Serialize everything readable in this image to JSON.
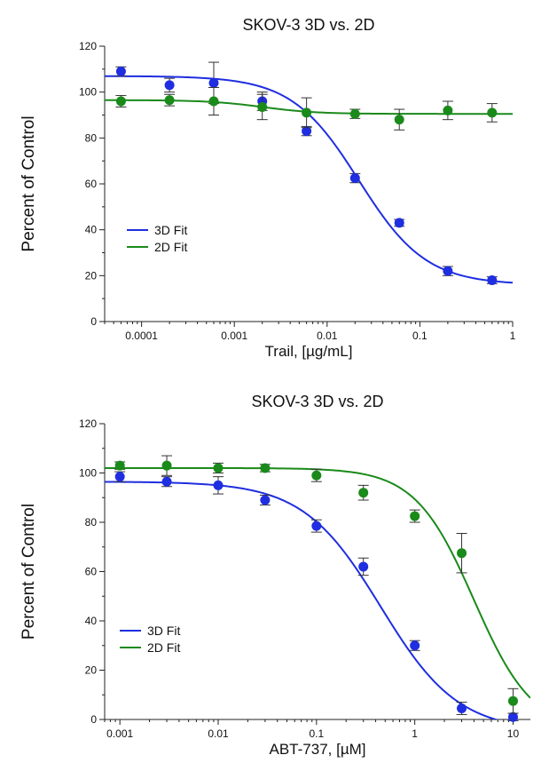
{
  "chart_data": [
    {
      "type": "scatter",
      "title": "SKOV-3  3D  vs.  2D",
      "xlabel": "Trail,  [µg/mL]",
      "ylabel": "Percent of Control",
      "xscale": "log",
      "xlim": [
        4e-05,
        1
      ],
      "ylim": [
        0,
        120
      ],
      "xticks": [
        {
          "value": 0.0001,
          "label": "0.0001"
        },
        {
          "value": 0.001,
          "label": "0.001"
        },
        {
          "value": 0.01,
          "label": "0.01"
        },
        {
          "value": 0.1,
          "label": "0.1"
        },
        {
          "value": 1,
          "label": "1"
        }
      ],
      "yticks": [
        0,
        20,
        40,
        60,
        80,
        100,
        120
      ],
      "legend_position": "lower-left",
      "grid": false,
      "series": [
        {
          "name": "3D Fit",
          "color": "#1f2ee0",
          "x": [
            6e-05,
            0.0002,
            0.0006,
            0.002,
            0.006,
            0.02,
            0.06,
            0.2,
            0.6
          ],
          "y": [
            109,
            103,
            104,
            96,
            83,
            62.5,
            43,
            22,
            18
          ],
          "err": [
            2,
            3,
            9,
            4,
            2,
            2,
            1.5,
            2,
            1.5
          ],
          "fit": {
            "bottom": 16,
            "top": 107,
            "ec50": 0.022,
            "hill": 1.2
          }
        },
        {
          "name": "2D Fit",
          "color": "#1a8a1a",
          "x": [
            6e-05,
            0.0002,
            0.0006,
            0.002,
            0.006,
            0.02,
            0.06,
            0.2,
            0.6
          ],
          "y": [
            96,
            96.5,
            96,
            93.5,
            91,
            90.5,
            88,
            92,
            91
          ],
          "err": [
            2.5,
            2.5,
            6,
            5.5,
            6.5,
            2,
            4.5,
            4,
            4
          ],
          "fit": {
            "bottom": 90.5,
            "top": 96.5,
            "ec50": 0.002,
            "hill": 1.5
          }
        }
      ]
    },
    {
      "type": "scatter",
      "title": "SKOV-3  3D  vs.  2D",
      "xlabel": "ABT-737,  [µM]",
      "ylabel": "Percent of Control",
      "xscale": "log",
      "xlim": [
        0.0007,
        15
      ],
      "ylim": [
        0,
        120
      ],
      "xticks": [
        {
          "value": 0.001,
          "label": "0.001"
        },
        {
          "value": 0.01,
          "label": "0.01"
        },
        {
          "value": 0.1,
          "label": "0.1"
        },
        {
          "value": 1,
          "label": "1"
        },
        {
          "value": 10,
          "label": "10"
        }
      ],
      "yticks": [
        0,
        20,
        40,
        60,
        80,
        100,
        120
      ],
      "legend_position": "lower-left",
      "grid": false,
      "series": [
        {
          "name": "3D Fit",
          "color": "#1f2ee0",
          "x": [
            0.001,
            0.003,
            0.01,
            0.03,
            0.1,
            0.3,
            1,
            3,
            10
          ],
          "y": [
            98.5,
            96.5,
            95,
            89,
            78.5,
            62,
            30,
            4.5,
            1
          ],
          "err": [
            2,
            2,
            3.5,
            2,
            2.5,
            3.5,
            2,
            2.5,
            1.5
          ],
          "fit": {
            "bottom": -5,
            "top": 96.5,
            "ec50": 0.45,
            "hill": 1.1
          }
        },
        {
          "name": "2D Fit",
          "color": "#1a8a1a",
          "x": [
            0.001,
            0.003,
            0.01,
            0.03,
            0.1,
            0.3,
            1,
            3,
            10
          ],
          "y": [
            103,
            103,
            102,
            102,
            99,
            92,
            82.5,
            67.5,
            7.5
          ],
          "err": [
            1.5,
            4,
            2,
            1.5,
            2.5,
            3,
            2.5,
            8,
            5
          ],
          "fit": {
            "bottom": -5,
            "top": 102,
            "ec50": 4.0,
            "hill": 1.45
          }
        }
      ]
    }
  ]
}
